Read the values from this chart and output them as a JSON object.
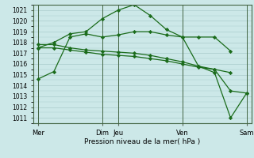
{
  "bg_color": "#cce8e8",
  "grid_color": "#aacccc",
  "line_color": "#1a6b1a",
  "xlabel": "Pression niveau de la mer( hPa )",
  "ylim": [
    1010.5,
    1021.5
  ],
  "yticks": [
    1011,
    1012,
    1013,
    1014,
    1015,
    1016,
    1017,
    1018,
    1019,
    1020,
    1021
  ],
  "day_positions": [
    0,
    4,
    5,
    9,
    13
  ],
  "day_labels": [
    "Mer",
    "Dim",
    "Jeu",
    "Ven",
    "Sam"
  ],
  "xlim": [
    -0.3,
    13.3
  ],
  "s1_x": [
    0,
    1,
    2,
    3,
    4,
    5,
    6,
    7,
    8,
    9,
    10,
    11,
    12
  ],
  "s1_y": [
    1014.6,
    1015.3,
    1018.5,
    1018.8,
    1018.5,
    1018.7,
    1019.0,
    1019.0,
    1018.7,
    1018.5,
    1018.5,
    1018.5,
    1017.2
  ],
  "s2_x": [
    0,
    1,
    2,
    3,
    4,
    5,
    6,
    7,
    8,
    9,
    10,
    11,
    12
  ],
  "s2_y": [
    1017.5,
    1017.5,
    1017.3,
    1017.1,
    1016.9,
    1016.8,
    1016.7,
    1016.5,
    1016.3,
    1016.0,
    1015.7,
    1015.5,
    1015.2
  ],
  "s3_x": [
    0,
    1,
    2,
    3,
    4,
    5,
    6,
    7,
    8,
    9,
    10,
    11,
    12,
    13
  ],
  "s3_y": [
    1017.8,
    1017.8,
    1017.5,
    1017.3,
    1017.2,
    1017.1,
    1017.0,
    1016.8,
    1016.5,
    1016.2,
    1015.8,
    1015.5,
    1013.5,
    1013.3
  ],
  "s4_x": [
    0,
    1,
    2,
    3,
    4,
    5,
    6,
    7,
    8,
    9,
    10,
    11,
    12,
    13
  ],
  "s4_y": [
    1017.5,
    1018.0,
    1018.8,
    1019.0,
    1020.2,
    1021.0,
    1021.5,
    1020.5,
    1019.2,
    1018.5,
    1015.8,
    1015.2,
    1011.0,
    1013.3
  ]
}
